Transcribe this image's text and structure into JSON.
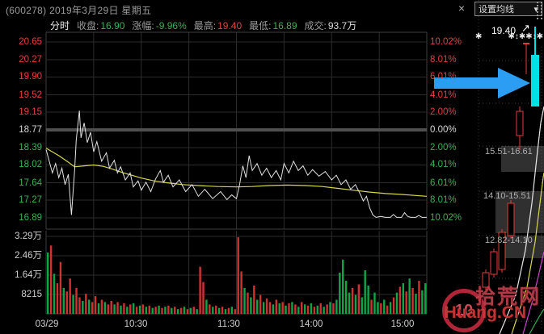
{
  "window": {
    "title": "(600278) 2019年3月29日 星期五",
    "close_label": "×",
    "ma_button_label": "设置均线",
    "ma_button_arrow": "▾",
    "decor_left": "✱",
    "decor_right": "✱↕✱✱↕✱"
  },
  "stats": {
    "mode": "分时",
    "close_label": "收盘:",
    "close_value": "16.90",
    "change_label": "涨幅:",
    "change_value": "-9.96%",
    "high_label": "最高:",
    "high_value": "19.40",
    "low_label": "最低:",
    "low_value": "16.89",
    "turnover_label": "成交:",
    "turnover_value": "93.7万"
  },
  "axes": {
    "price_left": [
      "20.65",
      "20.27",
      "19.90",
      "19.52",
      "19.15",
      "18.77",
      "18.39",
      "18.02",
      "17.64",
      "17.27",
      "16.89"
    ],
    "pct_right": [
      "10.02%",
      "8.01%",
      "6.01%",
      "4.01%",
      "2.00%",
      "0.00%",
      "2.00%",
      "4.01%",
      "6.01%",
      "8.01%",
      "10.02%"
    ],
    "volume": [
      "3.29万",
      "2.46万",
      "1.64万",
      "8215"
    ],
    "time": [
      "03/29",
      "10:30",
      "11:30",
      "14:00",
      "15:00"
    ]
  },
  "kline": {
    "high_label": "19.40",
    "high_arrow": "↗",
    "zones": [
      "15.51-16.61",
      "14.10-15.51",
      "12.82-14.10"
    ]
  },
  "watermark": {
    "logo": "10",
    "site": "拾荒网",
    "domain": "Huang.CN"
  },
  "colors": {
    "up_red": "#d03232",
    "down_green": "#11a548",
    "price_line": "#e2e2e2",
    "avg_line": "#d8d84f",
    "panic_candle": "#00e1e1",
    "arrow_blue": "#2b9ef3",
    "axis_red": "#e14040",
    "axis_green": "#3cb054",
    "axis_white": "#d6d6d6"
  },
  "chart_data": {
    "type": "line",
    "prev_close": 18.77,
    "ylim": [
      16.89,
      20.65
    ],
    "session_minutes": 240,
    "price_points": [
      [
        0,
        18.35
      ],
      [
        2,
        18.1
      ],
      [
        4,
        17.85
      ],
      [
        6,
        18.05
      ],
      [
        8,
        17.75
      ],
      [
        10,
        17.95
      ],
      [
        12,
        17.6
      ],
      [
        14,
        17.82
      ],
      [
        16,
        16.95
      ],
      [
        18,
        17.9
      ],
      [
        19,
        18.55
      ],
      [
        21,
        19.18
      ],
      [
        22,
        18.6
      ],
      [
        24,
        18.92
      ],
      [
        26,
        18.5
      ],
      [
        28,
        18.72
      ],
      [
        30,
        18.3
      ],
      [
        32,
        18.52
      ],
      [
        35,
        18.1
      ],
      [
        38,
        18.28
      ],
      [
        40,
        17.95
      ],
      [
        43,
        18.12
      ],
      [
        45,
        17.85
      ],
      [
        47,
        17.98
      ],
      [
        50,
        17.7
      ],
      [
        53,
        17.85
      ],
      [
        55,
        17.55
      ],
      [
        58,
        17.68
      ],
      [
        60,
        17.48
      ],
      [
        63,
        17.65
      ],
      [
        66,
        17.45
      ],
      [
        69,
        17.72
      ],
      [
        72,
        17.9
      ],
      [
        74,
        17.65
      ],
      [
        77,
        17.8
      ],
      [
        80,
        17.55
      ],
      [
        84,
        17.7
      ],
      [
        88,
        17.45
      ],
      [
        92,
        17.6
      ],
      [
        96,
        17.35
      ],
      [
        100,
        17.5
      ],
      [
        105,
        17.3
      ],
      [
        110,
        17.45
      ],
      [
        114,
        17.28
      ],
      [
        117,
        17.38
      ],
      [
        120,
        17.3
      ],
      [
        122,
        17.6
      ],
      [
        124,
        18.0
      ],
      [
        126,
        17.75
      ],
      [
        128,
        18.22
      ],
      [
        130,
        17.9
      ],
      [
        133,
        18.05
      ],
      [
        136,
        17.8
      ],
      [
        139,
        17.95
      ],
      [
        142,
        17.75
      ],
      [
        145,
        17.9
      ],
      [
        148,
        17.7
      ],
      [
        150,
        18.05
      ],
      [
        153,
        17.85
      ],
      [
        156,
        18.1
      ],
      [
        159,
        17.9
      ],
      [
        162,
        18.0
      ],
      [
        165,
        17.8
      ],
      [
        168,
        17.92
      ],
      [
        172,
        17.78
      ],
      [
        176,
        17.88
      ],
      [
        180,
        17.7
      ],
      [
        183,
        17.8
      ],
      [
        186,
        17.6
      ],
      [
        189,
        17.7
      ],
      [
        192,
        17.5
      ],
      [
        195,
        17.6
      ],
      [
        198,
        17.4
      ],
      [
        200,
        17.25
      ],
      [
        202,
        17.35
      ],
      [
        204,
        17.1
      ],
      [
        206,
        16.95
      ],
      [
        208,
        16.9
      ],
      [
        211,
        16.92
      ],
      [
        214,
        16.9
      ],
      [
        217,
        16.9
      ],
      [
        219,
        16.96
      ],
      [
        221,
        16.9
      ],
      [
        224,
        16.9
      ],
      [
        226,
        17.0
      ],
      [
        228,
        16.92
      ],
      [
        230,
        16.9
      ],
      [
        233,
        16.9
      ],
      [
        235,
        16.94
      ],
      [
        237,
        16.9
      ],
      [
        240,
        16.9
      ]
    ],
    "avg_points": [
      [
        0,
        18.38
      ],
      [
        8,
        18.22
      ],
      [
        14,
        18.08
      ],
      [
        18,
        17.98
      ],
      [
        24,
        18.0
      ],
      [
        30,
        18.02
      ],
      [
        36,
        17.99
      ],
      [
        42,
        17.93
      ],
      [
        48,
        17.86
      ],
      [
        54,
        17.8
      ],
      [
        60,
        17.74
      ],
      [
        68,
        17.68
      ],
      [
        76,
        17.64
      ],
      [
        86,
        17.6
      ],
      [
        96,
        17.58
      ],
      [
        108,
        17.56
      ],
      [
        120,
        17.55
      ],
      [
        130,
        17.56
      ],
      [
        140,
        17.58
      ],
      [
        152,
        17.59
      ],
      [
        164,
        17.58
      ],
      [
        174,
        17.56
      ],
      [
        184,
        17.52
      ],
      [
        194,
        17.48
      ],
      [
        204,
        17.44
      ],
      [
        214,
        17.41
      ],
      [
        224,
        17.39
      ],
      [
        232,
        17.37
      ],
      [
        240,
        17.35
      ]
    ],
    "volume_bins": [
      -2.6,
      2.9,
      -1.7,
      1.3,
      2.2,
      -1.1,
      0.95,
      1.5,
      -0.8,
      1.1,
      0.7,
      -0.55,
      0.85,
      -0.6,
      0.5,
      0.75,
      -0.45,
      0.6,
      -0.5,
      0.4,
      0.55,
      -0.4,
      0.5,
      -0.35,
      0.45,
      -0.3,
      0.4,
      -0.45,
      0.3,
      -0.35,
      0.4,
      -0.3,
      0.35,
      -0.25,
      0.3,
      -0.35,
      0.25,
      -0.3,
      0.35,
      -0.25,
      0.3,
      -0.2,
      0.25,
      -0.3,
      0.2,
      -0.25,
      0.3,
      -0.2,
      2.0,
      1.35,
      -0.6,
      0.4,
      -0.3,
      0.35,
      -0.25,
      0.3,
      -0.2,
      0.25,
      -0.3,
      0.2,
      3.25,
      1.8,
      -1.1,
      0.9,
      -0.7,
      1.2,
      -0.6,
      0.8,
      -0.5,
      0.65,
      0.5,
      -0.4,
      0.6,
      -0.45,
      0.5,
      -0.35,
      0.45,
      -0.5,
      0.4,
      -0.3,
      0.5,
      -0.4,
      0.35,
      -0.45,
      0.3,
      -0.35,
      0.45,
      -0.3,
      0.4,
      -0.5,
      0.45,
      -0.6,
      -1.75,
      -2.3,
      -1.4,
      -0.9,
      1.1,
      -0.8,
      1.25,
      -0.7,
      -1.85,
      -1.2,
      0.6,
      -0.9,
      -0.5,
      0.45,
      -0.6,
      0.35,
      -0.5,
      0.7,
      -0.9,
      1.15,
      -1.3,
      0.95,
      -1.5,
      1.1,
      -0.85,
      1.4,
      -1.0,
      -1.3
    ],
    "kline_panel": {
      "candles": [
        {
          "x": 597,
          "w": 8,
          "type": "up",
          "body": [
            338,
            356
          ],
          "wick": [
            334,
            360
          ]
        },
        {
          "x": 607,
          "w": 8,
          "type": "up",
          "body": [
            312,
            340
          ],
          "wick": [
            308,
            344
          ]
        },
        {
          "x": 617,
          "w": 8,
          "type": "up",
          "body": [
            288,
            334
          ],
          "wick": [
            284,
            338
          ]
        },
        {
          "x": 628,
          "w": 8,
          "type": "up",
          "body": [
            252,
            292
          ],
          "wick": [
            248,
            296
          ]
        },
        {
          "x": 639,
          "w": 8,
          "type": "up",
          "body": [
            138,
            168
          ],
          "wick": [
            132,
            186
          ]
        },
        {
          "x": 647,
          "w": 8,
          "type": "tbar",
          "body": [
            54,
            54
          ],
          "wick": [
            54,
            92
          ]
        },
        {
          "x": 657,
          "w": 10,
          "type": "down",
          "body": [
            68,
            132
          ],
          "wick": [
            33,
            132
          ]
        }
      ],
      "ma_lines": {
        "white": [
          [
            618,
            414
          ],
          [
            638,
            366
          ],
          [
            650,
            310
          ],
          [
            658,
            252
          ],
          [
            664,
            196
          ],
          [
            669,
            152
          ],
          [
            673,
            132
          ]
        ],
        "yellow": [
          [
            633,
            414
          ],
          [
            652,
            356
          ],
          [
            662,
            300
          ],
          [
            668,
            252
          ],
          [
            672,
            220
          ],
          [
            673,
            214
          ]
        ],
        "magenta": [
          [
            647,
            414
          ],
          [
            659,
            372
          ],
          [
            667,
            338
          ],
          [
            672,
            316
          ],
          [
            673,
            312
          ]
        ],
        "green": [
          [
            655,
            414
          ],
          [
            665,
            396
          ],
          [
            671,
            386
          ],
          [
            673,
            383
          ]
        ]
      },
      "zone_boxes": [
        [
          620,
          181,
          673,
          213
        ],
        [
          613,
          237,
          673,
          289
        ],
        [
          620,
          292,
          673,
          320
        ]
      ],
      "arrow_polygon": [
        [
          537,
          96
        ],
        [
          616,
          96
        ],
        [
          616,
          84
        ],
        [
          656,
          103
        ],
        [
          616,
          122
        ],
        [
          616,
          110
        ],
        [
          537,
          110
        ]
      ]
    }
  }
}
